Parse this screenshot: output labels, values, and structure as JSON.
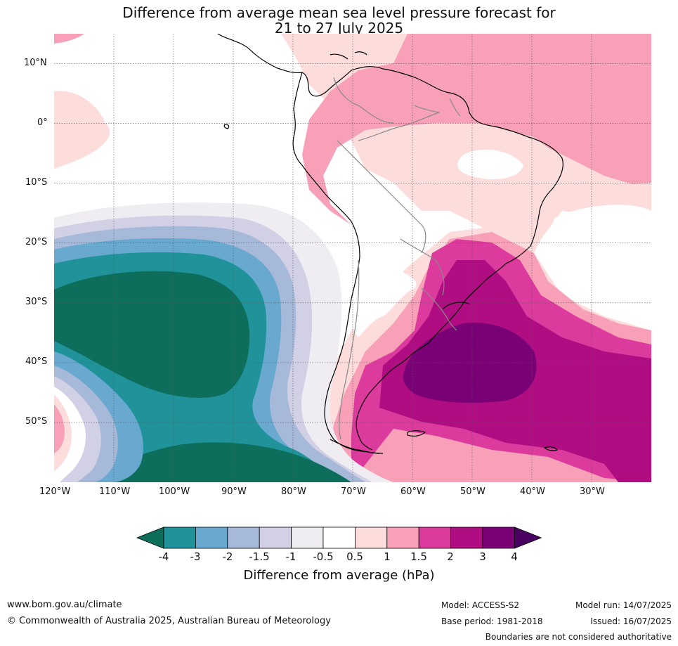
{
  "title": {
    "line1": "Difference from average mean sea level pressure forecast for",
    "line2": "21 to 27 July 2025"
  },
  "map": {
    "lat_ticks": [
      "10°N",
      "0°",
      "10°S",
      "20°S",
      "30°S",
      "40°S",
      "50°S"
    ],
    "lon_ticks": [
      "120°W",
      "110°W",
      "100°W",
      "90°W",
      "80°W",
      "70°W",
      "60°W",
      "50°W",
      "40°W",
      "30°W"
    ],
    "lat_range": [
      -60,
      15
    ],
    "lon_range": [
      -120,
      -20
    ]
  },
  "colorbar": {
    "title": "Difference from average (hPa)",
    "levels": [
      "-4",
      "-3",
      "-2",
      "-1.5",
      "-1",
      "-0.5",
      "0.5",
      "1",
      "1.5",
      "2",
      "3",
      "4"
    ],
    "colors": [
      "#0e6e5c",
      "#1f9399",
      "#69a9d0",
      "#a7b9d9",
      "#d1d0e5",
      "#efecf2",
      "#ffffff",
      "#fddcdc",
      "#f8a0b8",
      "#dd3a9e",
      "#b10d83",
      "#7a0076",
      "#4a0060"
    ]
  },
  "footer": {
    "website": "www.bom.gov.au/climate",
    "copyright": "© Commonwealth of Australia 2025, Australian Bureau of Meteorology",
    "model": "Model: ACCESS-S2",
    "base_period": "Base period: 1981-2018",
    "model_run": "Model run: 14/07/2025",
    "issued": "Issued: 16/07/2025",
    "disclaimer": "Boundaries are not considered authoritative"
  }
}
